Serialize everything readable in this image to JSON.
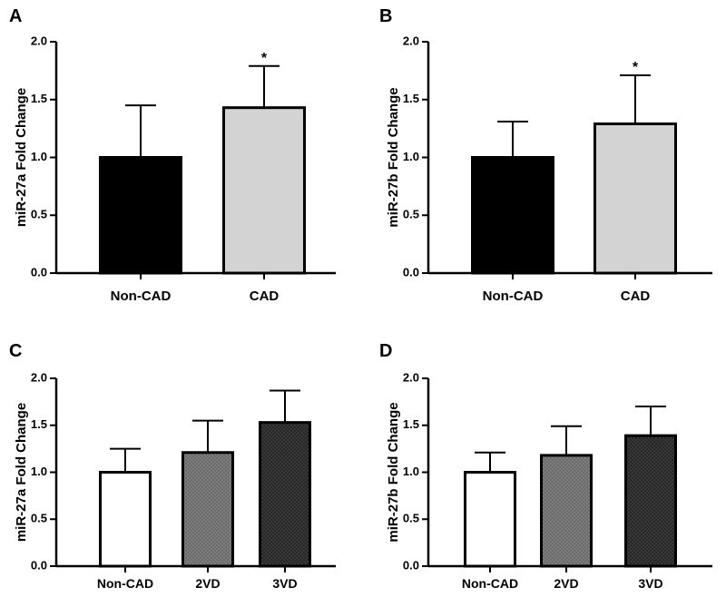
{
  "chart_data": [
    {
      "panel": "A",
      "type": "bar",
      "ylabel": "miR-27a Fold Change",
      "ylim": [
        0,
        2.0
      ],
      "yticks": [
        "0.0",
        "0.5",
        "1.0",
        "1.5",
        "2.0"
      ],
      "categories": [
        "Non-CAD",
        "CAD"
      ],
      "values": [
        1.0,
        1.43
      ],
      "error": [
        0.45,
        0.36
      ],
      "annotations": [
        "",
        "*"
      ],
      "fills": [
        "#000000",
        "#d3d3d3"
      ],
      "patterns": [
        "",
        ""
      ]
    },
    {
      "panel": "B",
      "type": "bar",
      "ylabel": "miR-27b Fold Change",
      "ylim": [
        0,
        2.0
      ],
      "yticks": [
        "0.0",
        "0.5",
        "1.0",
        "1.5",
        "2.0"
      ],
      "categories": [
        "Non-CAD",
        "CAD"
      ],
      "values": [
        1.0,
        1.29
      ],
      "error": [
        0.31,
        0.42
      ],
      "annotations": [
        "",
        "*"
      ],
      "fills": [
        "#000000",
        "#d3d3d3"
      ],
      "patterns": [
        "",
        ""
      ]
    },
    {
      "panel": "C",
      "type": "bar",
      "ylabel": "miR-27a Fold Change",
      "ylim": [
        0,
        2.0
      ],
      "yticks": [
        "0.0",
        "0.5",
        "1.0",
        "1.5",
        "2.0"
      ],
      "categories": [
        "Non-CAD",
        "2VD",
        "3VD"
      ],
      "values": [
        1.0,
        1.21,
        1.53
      ],
      "error": [
        0.25,
        0.34,
        0.34
      ],
      "annotations": [
        "",
        "",
        ""
      ],
      "fills": [
        "#ffffff",
        "#6b6b6b",
        "#2e2e2e"
      ],
      "patterns": [
        "",
        "dots-light",
        "dots-dark"
      ]
    },
    {
      "panel": "D",
      "type": "bar",
      "ylabel": "miR-27b Fold Change",
      "ylim": [
        0,
        2.0
      ],
      "yticks": [
        "0.0",
        "0.5",
        "1.0",
        "1.5",
        "2.0"
      ],
      "categories": [
        "Non-CAD",
        "2VD",
        "3VD"
      ],
      "values": [
        1.0,
        1.18,
        1.39
      ],
      "error": [
        0.21,
        0.31,
        0.31
      ],
      "annotations": [
        "",
        "",
        ""
      ],
      "fills": [
        "#ffffff",
        "#6b6b6b",
        "#2e2e2e"
      ],
      "patterns": [
        "",
        "dots-light",
        "dots-dark"
      ]
    }
  ]
}
